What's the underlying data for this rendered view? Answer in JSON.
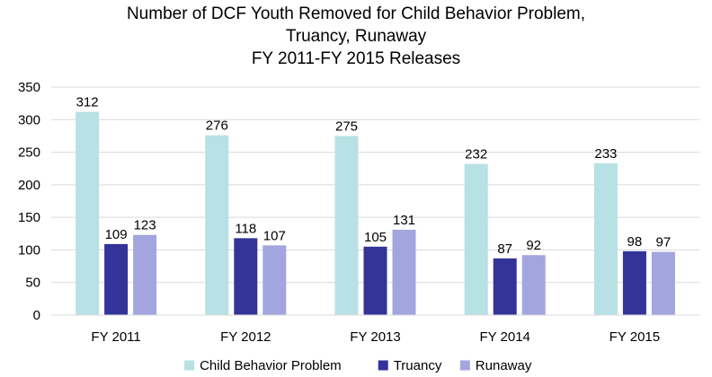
{
  "chart_data": {
    "type": "bar",
    "title": [
      "Number of DCF Youth Removed for Child Behavior Problem,",
      "Truancy, Runaway",
      "FY 2011-FY 2015 Releases"
    ],
    "categories": [
      "FY 2011",
      "FY 2012",
      "FY 2013",
      "FY 2014",
      "FY 2015"
    ],
    "series": [
      {
        "name": "Child Behavior Problem",
        "color": "#b7e1e4",
        "values": [
          312,
          276,
          275,
          232,
          233
        ]
      },
      {
        "name": "Truancy",
        "color": "#33339a",
        "values": [
          109,
          118,
          105,
          87,
          98
        ]
      },
      {
        "name": "Runaway",
        "color": "#a3a5de",
        "values": [
          123,
          107,
          131,
          92,
          97
        ]
      }
    ],
    "ylim": [
      0,
      350
    ],
    "yticks": [
      0,
      50,
      100,
      150,
      200,
      250,
      300,
      350
    ],
    "grid": true,
    "legend_position": "bottom",
    "data_labels": true
  }
}
